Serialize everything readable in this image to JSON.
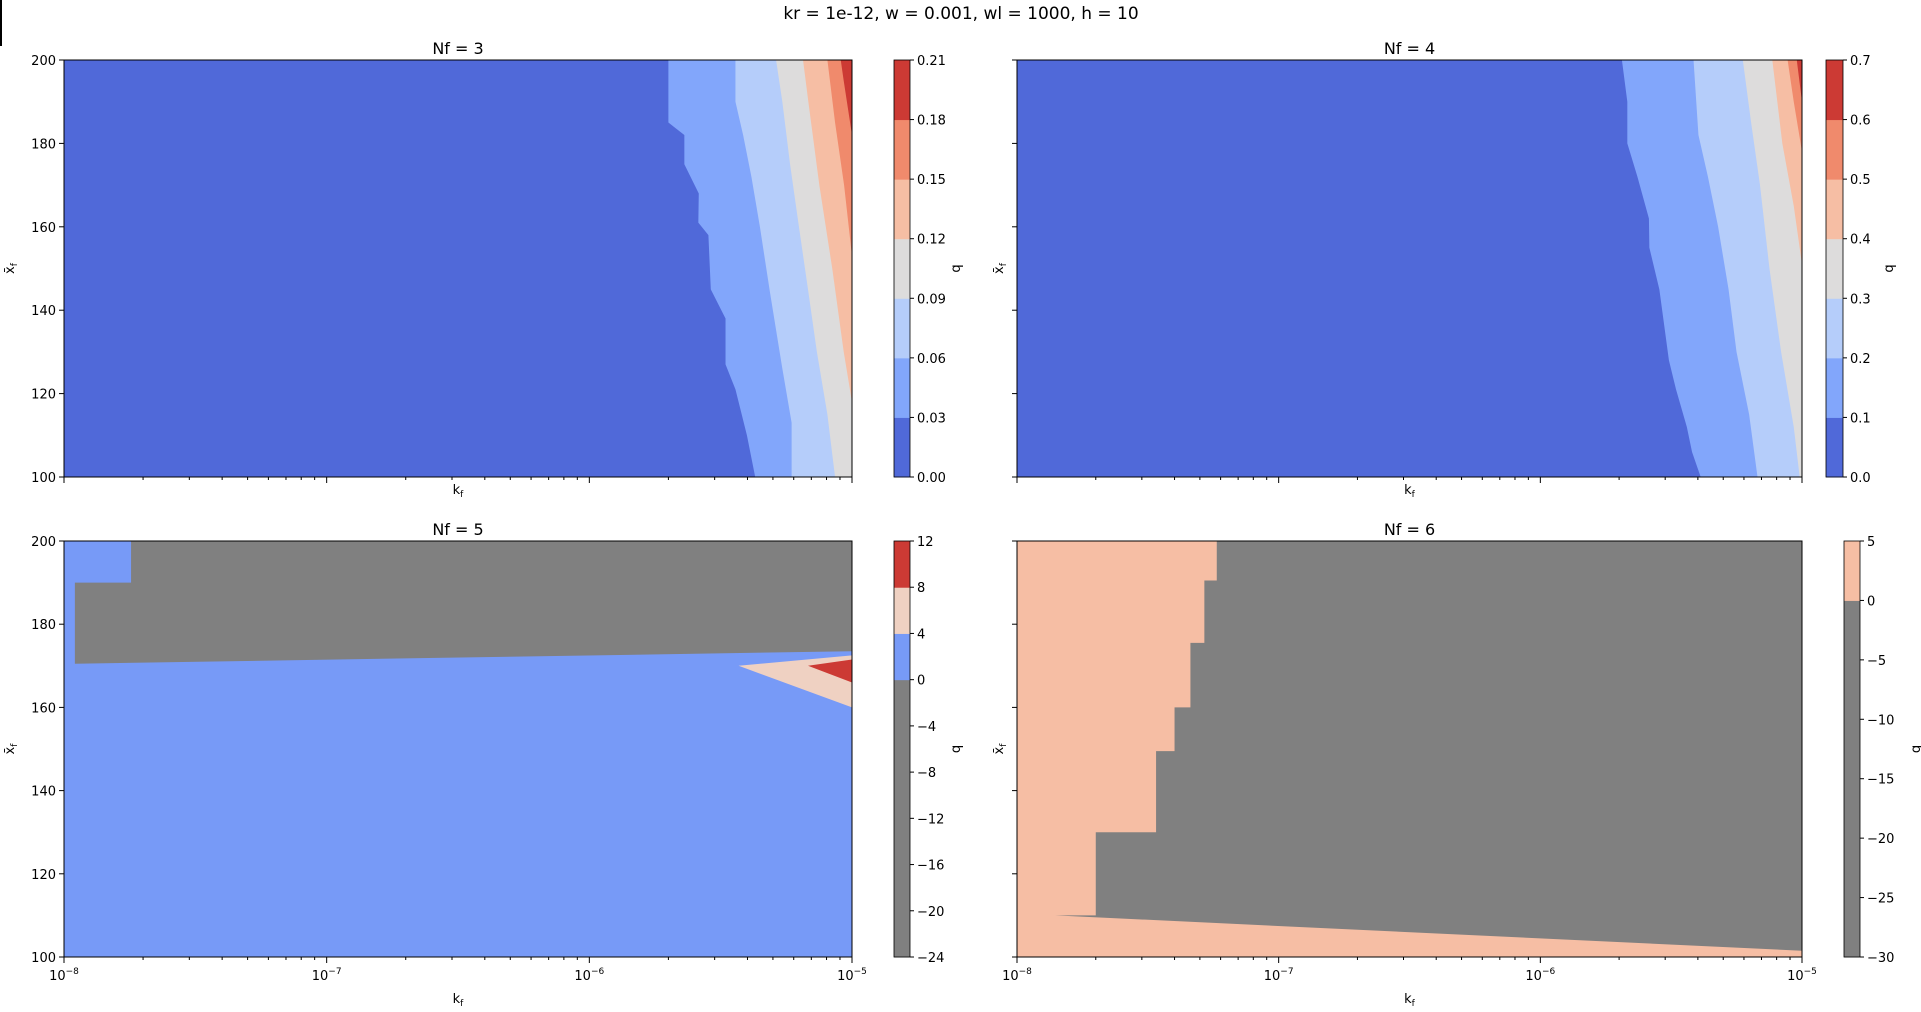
{
  "figure": {
    "suptitle": "kr = 1e-12, w = 0.001, wl = 1000, h = 10"
  },
  "chart_data": [
    {
      "type": "heatmap",
      "title": "Nf = 3",
      "xlabel": "k_f",
      "ylabel": "x̄_f",
      "xscale": "log",
      "xlim": [
        1e-08,
        1e-05
      ],
      "ylim": [
        100,
        200
      ],
      "y_ticks": [
        100,
        120,
        140,
        160,
        180,
        200
      ],
      "x_tick_labels": [],
      "colorbar": {
        "label": "q",
        "levels": [
          0.0,
          0.03,
          0.06,
          0.09,
          0.12,
          0.15,
          0.18,
          0.21
        ],
        "tick_labels": [
          "0.00",
          "0.03",
          "0.06",
          "0.09",
          "0.12",
          "0.15",
          "0.18",
          "0.21"
        ],
        "colors": [
          "#5069d9",
          "#82a6fb",
          "#b5cdfa",
          "#dddcdc",
          "#f6bea4",
          "#f08a6c",
          "#cc3a34"
        ]
      },
      "boundaries": [
        {
          "level": 0.03,
          "points": [
            [
              100,
              4.28e-06
            ],
            [
              110,
              3.98e-06
            ],
            [
              121,
              3.6e-06
            ],
            [
              127,
              3.3e-06
            ],
            [
              138,
              3.3e-06
            ],
            [
              145,
              2.9e-06
            ],
            [
              158,
              2.84e-06
            ],
            [
              161,
              2.6e-06
            ],
            [
              168,
              2.61e-06
            ],
            [
              175,
              2.3e-06
            ],
            [
              182,
              2.3e-06
            ],
            [
              185,
              2e-06
            ],
            [
              200,
              2e-06
            ]
          ]
        },
        {
          "level": 0.06,
          "points": [
            [
              100,
              5.89e-06
            ],
            [
              113,
              5.89e-06
            ],
            [
              126,
              5.43e-06
            ],
            [
              144,
              4.88e-06
            ],
            [
              160,
              4.46e-06
            ],
            [
              172,
              4.14e-06
            ],
            [
              182,
              3.85e-06
            ],
            [
              190,
              3.6e-06
            ],
            [
              200,
              3.6e-06
            ]
          ]
        },
        {
          "level": 0.09,
          "points": [
            [
              100,
              8.62e-06
            ],
            [
              115,
              8.06e-06
            ],
            [
              130,
              7.35e-06
            ],
            [
              145,
              6.8e-06
            ],
            [
              160,
              6.28e-06
            ],
            [
              175,
              5.81e-06
            ],
            [
              190,
              5.43e-06
            ],
            [
              200,
              5.14e-06
            ]
          ]
        },
        {
          "level": 0.12,
          "points": [
            [
              118,
              1e-05
            ],
            [
              130,
              9.3e-06
            ],
            [
              150,
              8.41e-06
            ],
            [
              170,
              7.51e-06
            ],
            [
              190,
              6.82e-06
            ],
            [
              200,
              6.51e-06
            ]
          ]
        },
        {
          "level": 0.15,
          "points": [
            [
              153,
              1e-05
            ],
            [
              170,
              9.33e-06
            ],
            [
              185,
              8.62e-06
            ],
            [
              200,
              8.06e-06
            ]
          ]
        },
        {
          "level": 0.18,
          "points": [
            [
              182,
              1e-05
            ],
            [
              195,
              9.3e-06
            ],
            [
              200,
              9.06e-06
            ]
          ]
        }
      ]
    },
    {
      "type": "heatmap",
      "title": "Nf = 4",
      "xlabel": "k_f",
      "ylabel": "x̄_f",
      "xscale": "log",
      "xlim": [
        1e-08,
        1e-05
      ],
      "ylim": [
        100,
        200
      ],
      "y_ticks": [
        100,
        120,
        140,
        160,
        180,
        200
      ],
      "x_tick_labels": [],
      "colorbar": {
        "label": "q",
        "levels": [
          0.0,
          0.1,
          0.2,
          0.3,
          0.4,
          0.5,
          0.6,
          0.7
        ],
        "tick_labels": [
          "0.0",
          "0.1",
          "0.2",
          "0.3",
          "0.4",
          "0.5",
          "0.6",
          "0.7"
        ],
        "colors": [
          "#5069d9",
          "#82a6fb",
          "#b5cdfa",
          "#dddcdc",
          "#f6bea4",
          "#f08a6c",
          "#cc3a34"
        ]
      },
      "boundaries": [
        {
          "level": 0.1,
          "points": [
            [
              100,
              4.1e-06
            ],
            [
              106,
              3.8e-06
            ],
            [
              112,
              3.63e-06
            ],
            [
              121,
              3.3e-06
            ],
            [
              128,
              3.1e-06
            ],
            [
              145,
              2.85e-06
            ],
            [
              155,
              2.61e-06
            ],
            [
              162,
              2.6e-06
            ],
            [
              172,
              2.35e-06
            ],
            [
              180,
              2.15e-06
            ],
            [
              190,
              2.15e-06
            ],
            [
              200,
              2.05e-06
            ]
          ]
        },
        {
          "level": 0.2,
          "points": [
            [
              100,
              6.76e-06
            ],
            [
              115,
              6.28e-06
            ],
            [
              130,
              5.62e-06
            ],
            [
              145,
              5.24e-06
            ],
            [
              160,
              4.78e-06
            ],
            [
              172,
              4.37e-06
            ],
            [
              182,
              4.02e-06
            ],
            [
              200,
              3.85e-06
            ]
          ]
        },
        {
          "level": 0.3,
          "points": [
            [
              100,
              9.8e-06
            ],
            [
              112,
              9.3e-06
            ],
            [
              130,
              8.32e-06
            ],
            [
              150,
              7.51e-06
            ],
            [
              170,
              6.91e-06
            ],
            [
              185,
              6.39e-06
            ],
            [
              200,
              5.94e-06
            ]
          ]
        },
        {
          "level": 0.4,
          "points": [
            [
              151,
              1e-05
            ],
            [
              165,
              9.3e-06
            ],
            [
              180,
              8.41e-06
            ],
            [
              200,
              7.7e-06
            ]
          ]
        },
        {
          "level": 0.5,
          "points": [
            [
              178,
              1e-05
            ],
            [
              190,
              9.3e-06
            ],
            [
              200,
              8.81e-06
            ]
          ]
        },
        {
          "level": 0.6,
          "points": [
            [
              190,
              1e-05
            ],
            [
              200,
              9.55e-06
            ]
          ]
        }
      ]
    },
    {
      "type": "heatmap",
      "title": "Nf = 5",
      "xlabel": "k_f",
      "ylabel": "x̄_f",
      "xscale": "log",
      "xlim": [
        1e-08,
        1e-05
      ],
      "ylim": [
        100,
        200
      ],
      "y_ticks": [
        100,
        120,
        140,
        160,
        180,
        200
      ],
      "x_tick_labels": [
        "10^-8",
        "10^-7",
        "10^-6",
        "10^-5"
      ],
      "colorbar": {
        "label": "q",
        "levels": [
          -24,
          -20,
          -16,
          -12,
          -8,
          -4,
          0,
          4,
          8,
          12
        ],
        "tick_labels": [
          "−24",
          "−20",
          "−16",
          "−12",
          "−8",
          "−4",
          "0",
          "4",
          "8",
          "12"
        ],
        "colors": [
          "#808080",
          "#808080",
          "#808080",
          "#808080",
          "#808080",
          "#808080",
          "#779af7",
          "#efd1c2",
          "#cc3a34"
        ]
      },
      "regions": [
        {
          "fill_level": -24,
          "polygon": [
            [
              1.1e-08,
              170.5
            ],
            [
              1e-05,
              173.5
            ],
            [
              1e-05,
              200
            ],
            [
              1.8e-08,
              200
            ],
            [
              1.8e-08,
              190
            ],
            [
              1.1e-08,
              190
            ]
          ]
        },
        {
          "fill_level": 4,
          "polygon": [
            [
              3.7e-06,
              170
            ],
            [
              1e-05,
              172.5
            ],
            [
              1e-05,
              160
            ]
          ]
        },
        {
          "fill_level": 8,
          "polygon": [
            [
              6.8e-06,
              170
            ],
            [
              1e-05,
              171.5
            ],
            [
              1e-05,
              166
            ]
          ]
        }
      ],
      "background_level": 0
    },
    {
      "type": "heatmap",
      "title": "Nf = 6",
      "xlabel": "k_f",
      "ylabel": "x̄_f",
      "xscale": "log",
      "xlim": [
        1e-08,
        1e-05
      ],
      "ylim": [
        100,
        200
      ],
      "y_ticks": [
        100,
        120,
        140,
        160,
        180,
        200
      ],
      "x_tick_labels": [
        "10^-8",
        "10^-7",
        "10^-6",
        "10^-5"
      ],
      "colorbar": {
        "label": "q",
        "levels": [
          -30,
          -25,
          -20,
          -15,
          -10,
          -5,
          0,
          5
        ],
        "tick_labels": [
          "−30",
          "−25",
          "−20",
          "−15",
          "−10",
          "−5",
          "0",
          "5"
        ],
        "colors": [
          "#808080",
          "#808080",
          "#808080",
          "#808080",
          "#808080",
          "#808080",
          "#f6bea4"
        ]
      },
      "regions": [
        {
          "fill_level": -30,
          "polygon": [
            [
              1.4e-08,
              110
            ],
            [
              1e-05,
              101.5
            ],
            [
              1e-05,
              200
            ],
            [
              5.8e-06,
              200
            ],
            [
              5.8e-08,
              200
            ],
            [
              5.8e-08,
              190.5
            ],
            [
              5.2e-08,
              190.5
            ],
            [
              5.2e-08,
              175.5
            ],
            [
              4.6e-08,
              175.5
            ],
            [
              4.6e-08,
              160
            ],
            [
              4e-08,
              160
            ],
            [
              4e-08,
              149.5
            ],
            [
              3.4e-08,
              149.5
            ],
            [
              3.4e-08,
              130
            ],
            [
              2e-08,
              130
            ],
            [
              2e-08,
              110
            ]
          ]
        }
      ],
      "background_level": 0
    }
  ]
}
